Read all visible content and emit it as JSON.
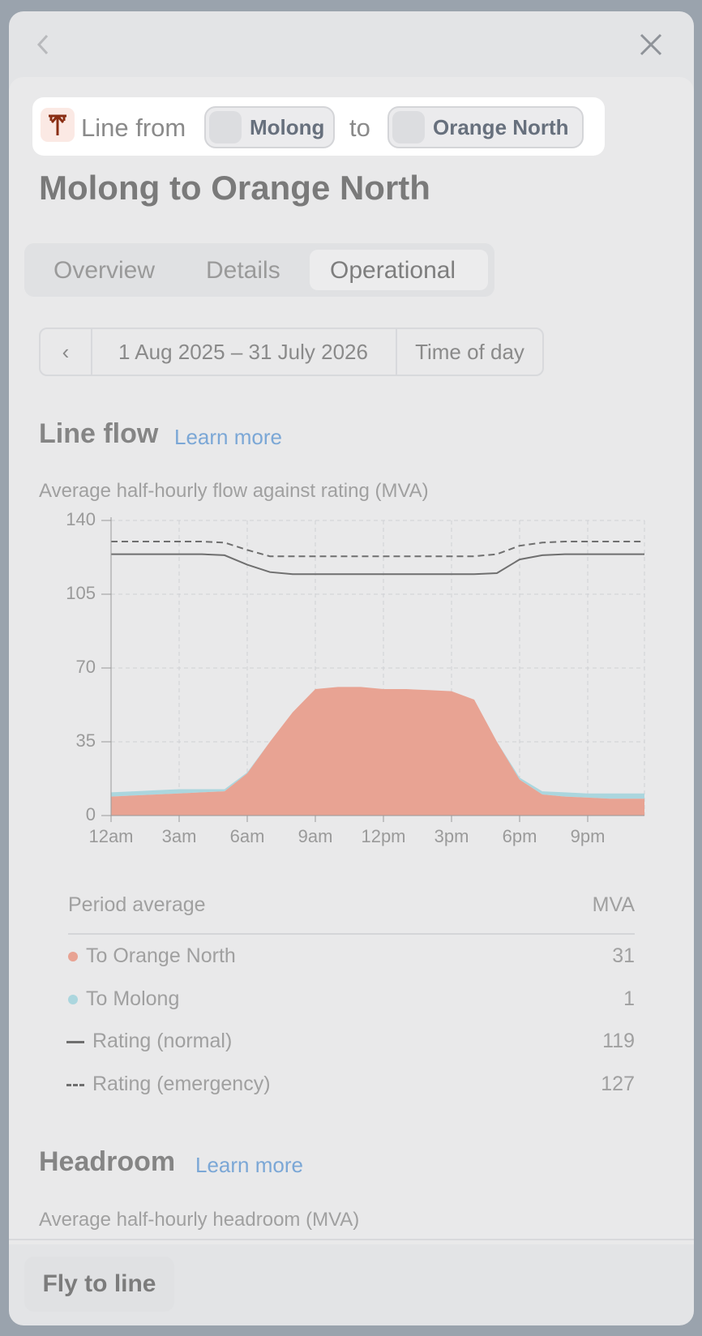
{
  "header": {
    "breadcrumb": {
      "prefix": "Line from",
      "from": "Molong",
      "joiner": "to",
      "to": "Orange North"
    },
    "title": "Molong to Orange North"
  },
  "tabs": [
    "Overview",
    "Details",
    "Operational"
  ],
  "controls": {
    "date_range": "1 Aug 2025 – 31 July 2026",
    "mode": "Time of day"
  },
  "line_flow": {
    "heading": "Line flow",
    "link": "Learn more",
    "subtitle": "Average half-hourly flow against rating (MVA)"
  },
  "table": {
    "header": [
      "Period average",
      "MVA"
    ],
    "values": [
      31,
      1,
      119,
      127
    ]
  },
  "headroom": {
    "heading": "Headroom",
    "link": "Learn more",
    "subtitle": "Average half-hourly headroom (MVA)"
  },
  "footer": {
    "button": "Fly to line"
  },
  "chart_data": {
    "type": "area",
    "grid": true,
    "x": [
      0,
      1,
      2,
      3,
      4,
      5,
      6,
      7,
      8,
      9,
      10,
      11,
      12,
      13,
      14,
      15,
      16,
      17,
      18,
      19,
      20,
      21,
      22,
      23,
      23.5
    ],
    "xlim": [
      0,
      23.5
    ],
    "ylim": [
      0,
      140
    ],
    "yticks": [
      0,
      35,
      70,
      105,
      140
    ],
    "xticks": [
      {
        "value": 0,
        "label": "12am"
      },
      {
        "value": 3,
        "label": "3am"
      },
      {
        "value": 6,
        "label": "6am"
      },
      {
        "value": 9,
        "label": "9am"
      },
      {
        "value": 12,
        "label": "12pm"
      },
      {
        "value": 15,
        "label": "3pm"
      },
      {
        "value": 18,
        "label": "6pm"
      },
      {
        "value": 21,
        "label": "9pm"
      }
    ],
    "series": [
      {
        "name": "To Orange North",
        "color": "#e8a393",
        "style": "area",
        "values": [
          9,
          9.5,
          10,
          10.5,
          11,
          11.5,
          20,
          35,
          49,
          60,
          61,
          61,
          60,
          60,
          59.5,
          59,
          55,
          35,
          17,
          10,
          9,
          8.5,
          8,
          8,
          8
        ]
      },
      {
        "name": "To Molong",
        "color": "#abd6de",
        "style": "area",
        "values": [
          2,
          2,
          2,
          2,
          1.5,
          1,
          0.5,
          0,
          0,
          0,
          0,
          0,
          0,
          0,
          0,
          0,
          0,
          0,
          1,
          1.5,
          2,
          2,
          2.5,
          2.5,
          2.5
        ]
      },
      {
        "name": "Rating (normal)",
        "color": "#6f6f6f",
        "style": "line",
        "dash": false,
        "values": [
          124,
          124,
          124,
          124,
          124,
          123.5,
          119,
          115.5,
          114.5,
          114.5,
          114.5,
          114.5,
          114.5,
          114.5,
          114.5,
          114.5,
          114.5,
          115,
          121.5,
          123.5,
          124,
          124,
          124,
          124,
          124
        ]
      },
      {
        "name": "Rating (emergency)",
        "color": "#6f6f6f",
        "style": "line",
        "dash": true,
        "values": [
          130,
          130,
          130,
          130,
          130,
          129.5,
          126,
          123,
          123,
          123,
          123,
          123,
          123,
          123,
          123,
          123,
          123,
          124,
          128,
          129.5,
          130,
          130,
          130,
          130,
          130
        ]
      }
    ]
  }
}
